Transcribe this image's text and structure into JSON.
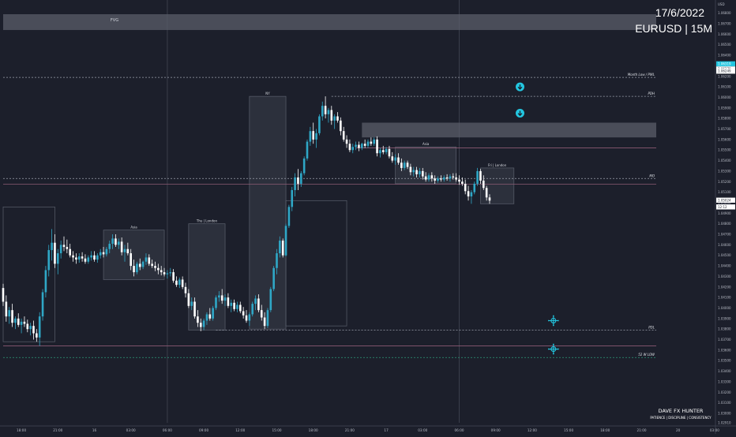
{
  "header": {
    "date": "17/6/2022",
    "symbol": "EURUSD | 15M"
  },
  "branding": {
    "name": "DAVE FX HUNTER",
    "tagline": "PATIENCE | DISCIPLINE | CONSISTENCY"
  },
  "colors": {
    "background": "#1c1f2b",
    "bull": "#2fa7c6",
    "bear": "#ffffff",
    "accent": "#23c6e0",
    "zone": "#5a5e6a",
    "level_grey": "#9aa0ac",
    "level_pink": "#8c5a74",
    "level_green": "#2e9a7a"
  },
  "chart_data": {
    "type": "candlestick",
    "symbol": "EURUSD",
    "timeframe": "15M",
    "currency_label": "USD",
    "ylim": [
      1.0291,
      1.0688
    ],
    "y_ticks": [
      "1.06800",
      "1.06700",
      "1.06600",
      "1.06500",
      "1.06400",
      "1.06300",
      "1.06200",
      "1.06100",
      "1.06000",
      "1.05900",
      "1.05800",
      "1.05700",
      "1.05600",
      "1.05500",
      "1.05400",
      "1.05300",
      "1.05200",
      "1.05100",
      "1.05000",
      "1.04900",
      "1.04800",
      "1.04700",
      "1.04600",
      "1.04500",
      "1.04400",
      "1.04300",
      "1.04200",
      "1.04100",
      "1.04000",
      "1.03900",
      "1.03800",
      "1.03700",
      "1.03600",
      "1.03500",
      "1.03400",
      "1.03300",
      "1.03200",
      "1.03100",
      "1.03000",
      "1.02910"
    ],
    "x_ticks": [
      {
        "i": 6,
        "label": "18:00"
      },
      {
        "i": 18,
        "label": "21:00"
      },
      {
        "i": 30,
        "label": "16"
      },
      {
        "i": 42,
        "label": "03:00"
      },
      {
        "i": 54,
        "label": "06:00"
      },
      {
        "i": 66,
        "label": "09:00"
      },
      {
        "i": 78,
        "label": "12:00"
      },
      {
        "i": 90,
        "label": "15:00"
      },
      {
        "i": 102,
        "label": "18:00"
      },
      {
        "i": 114,
        "label": "21:00"
      },
      {
        "i": 126,
        "label": "17"
      },
      {
        "i": 138,
        "label": "03:00"
      },
      {
        "i": 150,
        "label": "06:00"
      },
      {
        "i": 162,
        "label": "09:00"
      },
      {
        "i": 174,
        "label": "12:00"
      },
      {
        "i": 186,
        "label": "15:00"
      },
      {
        "i": 198,
        "label": "18:00"
      },
      {
        "i": 210,
        "label": "21:00"
      },
      {
        "i": 222,
        "label": "20"
      },
      {
        "i": 234,
        "label": "03:00"
      }
    ],
    "vlines_at": [
      54,
      150
    ],
    "price_labels": [
      {
        "text": "1.06319",
        "y": 1.06319,
        "style": "accent"
      },
      {
        "text": "1.06270",
        "y": 1.0627,
        "style": "light"
      },
      {
        "text": "1.06249",
        "y": 1.06249,
        "style": "light"
      },
      {
        "text": "1.05024",
        "y": 1.05024,
        "style": "light"
      },
      {
        "text": "12:12",
        "y": 1.0496,
        "style": "light"
      }
    ],
    "levels": [
      {
        "label": "Month Low / PWL",
        "y": 1.0619,
        "color": "grey",
        "from": 0
      },
      {
        "label": "PDH",
        "y": 1.0601,
        "color": "grey",
        "from": 108
      },
      {
        "label": "",
        "y": 1.0552,
        "color": "pink",
        "from": 116
      },
      {
        "label": "MO",
        "y": 1.0523,
        "color": "grey",
        "from": 0
      },
      {
        "label": "",
        "y": 1.05175,
        "color": "pink",
        "from": 0
      },
      {
        "label": "PDL",
        "y": 1.0379,
        "color": "grey",
        "from": 70
      },
      {
        "label": "",
        "y": 1.0364,
        "color": "pink",
        "from": 0
      },
      {
        "label": "52 W LOW",
        "y": 1.0353,
        "color": "green",
        "from": 0
      }
    ],
    "zones": [
      {
        "label": "FVG",
        "y1": 1.0664,
        "y2": 1.0679,
        "from": 0,
        "to": 221
      },
      {
        "label": "",
        "y1": 1.0562,
        "y2": 1.0576,
        "from": 118,
        "to": 221
      }
    ],
    "session_boxes": [
      {
        "label": "",
        "from": 0,
        "to": 17,
        "y1": 1.0368,
        "y2": 1.0496,
        "fill": false
      },
      {
        "label": "Asia",
        "from": 33,
        "to": 53,
        "y1": 1.0427,
        "y2": 1.0474,
        "fill": true
      },
      {
        "label": "Thu | London",
        "from": 61,
        "to": 73,
        "y1": 1.0379,
        "y2": 1.048,
        "fill": true
      },
      {
        "label": "NY",
        "from": 81,
        "to": 93,
        "y1": 1.038,
        "y2": 1.0601,
        "fill": true
      },
      {
        "label": "",
        "from": 93,
        "to": 113,
        "y1": 1.0383,
        "y2": 1.0502,
        "fill": false
      },
      {
        "label": "Asia",
        "from": 129,
        "to": 149,
        "y1": 1.0518,
        "y2": 1.0553,
        "fill": true
      },
      {
        "label": "Fri | London",
        "from": 157,
        "to": 168,
        "y1": 1.0499,
        "y2": 1.0533,
        "fill": true
      }
    ],
    "markers": [
      {
        "type": "down-arrow",
        "i": 170,
        "y": 1.061
      },
      {
        "type": "down-arrow",
        "i": 170,
        "y": 1.0585
      },
      {
        "type": "target",
        "i": 181,
        "y": 1.0388
      },
      {
        "type": "target",
        "i": 181,
        "y": 1.0361
      }
    ],
    "ohlc": [
      [
        1.0419,
        1.0423,
        1.0402,
        1.0406
      ],
      [
        1.0406,
        1.0412,
        1.0387,
        1.0392
      ],
      [
        1.0392,
        1.0401,
        1.0385,
        1.0398
      ],
      [
        1.0398,
        1.0404,
        1.0382,
        1.0386
      ],
      [
        1.0386,
        1.0392,
        1.038,
        1.039
      ],
      [
        1.039,
        1.0395,
        1.0382,
        1.0384
      ],
      [
        1.0384,
        1.039,
        1.0376,
        1.0387
      ],
      [
        1.0387,
        1.0392,
        1.0382,
        1.0385
      ],
      [
        1.0385,
        1.0389,
        1.0377,
        1.038
      ],
      [
        1.038,
        1.0386,
        1.0374,
        1.0383
      ],
      [
        1.0383,
        1.0388,
        1.037,
        1.0376
      ],
      [
        1.0376,
        1.038,
        1.0368,
        1.0372
      ],
      [
        1.0372,
        1.0396,
        1.0364,
        1.0392
      ],
      [
        1.0392,
        1.0418,
        1.0388,
        1.0415
      ],
      [
        1.0415,
        1.044,
        1.041,
        1.0436
      ],
      [
        1.0436,
        1.046,
        1.043,
        1.0455
      ],
      [
        1.0455,
        1.0475,
        1.0445,
        1.0462
      ],
      [
        1.0462,
        1.047,
        1.0438,
        1.0442
      ],
      [
        1.0442,
        1.0456,
        1.0432,
        1.0452
      ],
      [
        1.0452,
        1.0464,
        1.0447,
        1.046
      ],
      [
        1.046,
        1.0468,
        1.0454,
        1.0458
      ],
      [
        1.0458,
        1.0465,
        1.0452,
        1.0456
      ],
      [
        1.0456,
        1.0461,
        1.0448,
        1.045
      ],
      [
        1.045,
        1.0454,
        1.0444,
        1.0448
      ],
      [
        1.0448,
        1.0452,
        1.0442,
        1.0446
      ],
      [
        1.0446,
        1.0452,
        1.0443,
        1.0449
      ],
      [
        1.0449,
        1.0453,
        1.0444,
        1.0447
      ],
      [
        1.0447,
        1.0451,
        1.0442,
        1.0444
      ],
      [
        1.0444,
        1.045,
        1.0442,
        1.0448
      ],
      [
        1.0448,
        1.0454,
        1.0445,
        1.045
      ],
      [
        1.045,
        1.0454,
        1.0444,
        1.0446
      ],
      [
        1.0446,
        1.0452,
        1.0443,
        1.045
      ],
      [
        1.045,
        1.0456,
        1.0447,
        1.0453
      ],
      [
        1.0453,
        1.0458,
        1.0448,
        1.0451
      ],
      [
        1.0451,
        1.0458,
        1.0449,
        1.0456
      ],
      [
        1.0456,
        1.0464,
        1.0452,
        1.0461
      ],
      [
        1.0461,
        1.047,
        1.0456,
        1.0466
      ],
      [
        1.0466,
        1.047,
        1.0458,
        1.046
      ],
      [
        1.046,
        1.0466,
        1.0456,
        1.0463
      ],
      [
        1.0463,
        1.0467,
        1.045,
        1.0453
      ],
      [
        1.0453,
        1.046,
        1.0444,
        1.0456
      ],
      [
        1.0456,
        1.0462,
        1.045,
        1.0452
      ],
      [
        1.0452,
        1.0456,
        1.0436,
        1.044
      ],
      [
        1.044,
        1.0446,
        1.043,
        1.0434
      ],
      [
        1.0434,
        1.0444,
        1.0432,
        1.0442
      ],
      [
        1.0442,
        1.0447,
        1.0436,
        1.0439
      ],
      [
        1.0439,
        1.0445,
        1.0437,
        1.0444
      ],
      [
        1.0444,
        1.0452,
        1.0441,
        1.0448
      ],
      [
        1.0448,
        1.0451,
        1.044,
        1.0442
      ],
      [
        1.0442,
        1.0446,
        1.0438,
        1.044
      ],
      [
        1.044,
        1.0444,
        1.0435,
        1.0438
      ],
      [
        1.0438,
        1.0442,
        1.0432,
        1.0436
      ],
      [
        1.0436,
        1.044,
        1.0431,
        1.0434
      ],
      [
        1.0434,
        1.0438,
        1.043,
        1.0432
      ],
      [
        1.0432,
        1.0436,
        1.0428,
        1.0433
      ],
      [
        1.0433,
        1.0438,
        1.043,
        1.0434
      ],
      [
        1.0434,
        1.0437,
        1.0424,
        1.0426
      ],
      [
        1.0426,
        1.043,
        1.042,
        1.0422
      ],
      [
        1.0422,
        1.0429,
        1.0419,
        1.0427
      ],
      [
        1.0427,
        1.043,
        1.0418,
        1.042
      ],
      [
        1.042,
        1.0424,
        1.041,
        1.0414
      ],
      [
        1.0414,
        1.0418,
        1.04,
        1.0402
      ],
      [
        1.0402,
        1.041,
        1.0398,
        1.0406
      ],
      [
        1.0406,
        1.041,
        1.039,
        1.0392
      ],
      [
        1.0392,
        1.0398,
        1.0382,
        1.0386
      ],
      [
        1.0386,
        1.039,
        1.0378,
        1.0382
      ],
      [
        1.0382,
        1.039,
        1.0379,
        1.0388
      ],
      [
        1.0388,
        1.0396,
        1.0384,
        1.0394
      ],
      [
        1.0394,
        1.04,
        1.0388,
        1.039
      ],
      [
        1.039,
        1.0402,
        1.0388,
        1.04
      ],
      [
        1.04,
        1.0412,
        1.0398,
        1.041
      ],
      [
        1.041,
        1.0416,
        1.0406,
        1.0412
      ],
      [
        1.0412,
        1.0418,
        1.0404,
        1.0407
      ],
      [
        1.0407,
        1.0413,
        1.0402,
        1.041
      ],
      [
        1.041,
        1.0414,
        1.04,
        1.0402
      ],
      [
        1.0402,
        1.0408,
        1.0396,
        1.0405
      ],
      [
        1.0405,
        1.0408,
        1.0397,
        1.0399
      ],
      [
        1.0399,
        1.0406,
        1.0396,
        1.0403
      ],
      [
        1.0403,
        1.0406,
        1.0395,
        1.0397
      ],
      [
        1.0397,
        1.0401,
        1.039,
        1.0393
      ],
      [
        1.0393,
        1.0398,
        1.0386,
        1.0388
      ],
      [
        1.0388,
        1.0396,
        1.0383,
        1.0394
      ],
      [
        1.0394,
        1.0406,
        1.0392,
        1.0404
      ],
      [
        1.0404,
        1.0412,
        1.0398,
        1.0409
      ],
      [
        1.0409,
        1.0413,
        1.0396,
        1.0398
      ],
      [
        1.0398,
        1.0403,
        1.0388,
        1.0391
      ],
      [
        1.0391,
        1.0396,
        1.038,
        1.0383
      ],
      [
        1.0383,
        1.04,
        1.0381,
        1.0398
      ],
      [
        1.0398,
        1.042,
        1.0396,
        1.0418
      ],
      [
        1.0418,
        1.044,
        1.0416,
        1.0438
      ],
      [
        1.0438,
        1.0456,
        1.0432,
        1.0452
      ],
      [
        1.0452,
        1.0468,
        1.0448,
        1.0464
      ],
      [
        1.0464,
        1.0466,
        1.0448,
        1.045
      ],
      [
        1.045,
        1.048,
        1.0449,
        1.0478
      ],
      [
        1.0478,
        1.0498,
        1.0476,
        1.0496
      ],
      [
        1.0496,
        1.0515,
        1.0492,
        1.0512
      ],
      [
        1.0512,
        1.0528,
        1.0506,
        1.0524
      ],
      [
        1.0524,
        1.0532,
        1.0512,
        1.0518
      ],
      [
        1.0518,
        1.053,
        1.0515,
        1.0528
      ],
      [
        1.0528,
        1.0544,
        1.0526,
        1.0542
      ],
      [
        1.0542,
        1.056,
        1.054,
        1.0558
      ],
      [
        1.0558,
        1.0572,
        1.0554,
        1.0568
      ],
      [
        1.0568,
        1.0576,
        1.0556,
        1.056
      ],
      [
        1.056,
        1.057,
        1.0552,
        1.0566
      ],
      [
        1.0566,
        1.0584,
        1.0564,
        1.0582
      ],
      [
        1.0582,
        1.0596,
        1.0578,
        1.0592
      ],
      [
        1.0592,
        1.0601,
        1.058,
        1.0584
      ],
      [
        1.0584,
        1.059,
        1.0576,
        1.0588
      ],
      [
        1.0588,
        1.0592,
        1.0574,
        1.0578
      ],
      [
        1.0578,
        1.0584,
        1.057,
        1.0582
      ],
      [
        1.0582,
        1.0586,
        1.0576,
        1.0578
      ],
      [
        1.0578,
        1.0581,
        1.0564,
        1.0568
      ],
      [
        1.0568,
        1.0572,
        1.0558,
        1.056
      ],
      [
        1.056,
        1.0564,
        1.0552,
        1.0556
      ],
      [
        1.0556,
        1.056,
        1.0548,
        1.055
      ],
      [
        1.055,
        1.0556,
        1.0547,
        1.0553
      ],
      [
        1.0553,
        1.0558,
        1.055,
        1.0555
      ],
      [
        1.0555,
        1.0558,
        1.0549,
        1.0552
      ],
      [
        1.0552,
        1.0557,
        1.055,
        1.0556
      ],
      [
        1.0556,
        1.056,
        1.0552,
        1.0554
      ],
      [
        1.0554,
        1.056,
        1.0552,
        1.0558
      ],
      [
        1.0558,
        1.0562,
        1.0554,
        1.0556
      ],
      [
        1.0556,
        1.0562,
        1.0554,
        1.056
      ],
      [
        1.056,
        1.0563,
        1.0544,
        1.0547
      ],
      [
        1.0547,
        1.0552,
        1.0543,
        1.055
      ],
      [
        1.055,
        1.0554,
        1.0546,
        1.0548
      ],
      [
        1.0548,
        1.0553,
        1.0546,
        1.0551
      ],
      [
        1.0551,
        1.0554,
        1.0542,
        1.0544
      ],
      [
        1.0544,
        1.0548,
        1.0538,
        1.054
      ],
      [
        1.054,
        1.0546,
        1.0536,
        1.0543
      ],
      [
        1.0543,
        1.0547,
        1.0536,
        1.0538
      ],
      [
        1.0538,
        1.0542,
        1.053,
        1.0533
      ],
      [
        1.0533,
        1.054,
        1.0531,
        1.0538
      ],
      [
        1.0538,
        1.054,
        1.0532,
        1.0534
      ],
      [
        1.0534,
        1.0537,
        1.0526,
        1.0529
      ],
      [
        1.0529,
        1.0534,
        1.0525,
        1.0531
      ],
      [
        1.0531,
        1.0534,
        1.0524,
        1.0527
      ],
      [
        1.0527,
        1.0533,
        1.0524,
        1.053
      ],
      [
        1.053,
        1.0533,
        1.0522,
        1.0525
      ],
      [
        1.0525,
        1.0529,
        1.052,
        1.0522
      ],
      [
        1.0522,
        1.0528,
        1.052,
        1.0526
      ],
      [
        1.0526,
        1.0529,
        1.052,
        1.0523
      ],
      [
        1.0523,
        1.0526,
        1.0518,
        1.0521
      ],
      [
        1.0521,
        1.0525,
        1.0519,
        1.0523
      ],
      [
        1.0523,
        1.0526,
        1.052,
        1.0522
      ],
      [
        1.0522,
        1.0526,
        1.052,
        1.0524
      ],
      [
        1.0524,
        1.0527,
        1.0521,
        1.0523
      ],
      [
        1.0523,
        1.0527,
        1.052,
        1.0525
      ],
      [
        1.0525,
        1.0528,
        1.0522,
        1.0524
      ],
      [
        1.0524,
        1.0528,
        1.052,
        1.0522
      ],
      [
        1.0522,
        1.0526,
        1.0517,
        1.052
      ],
      [
        1.052,
        1.0524,
        1.0516,
        1.0518
      ],
      [
        1.0518,
        1.0522,
        1.0508,
        1.0511
      ],
      [
        1.0511,
        1.0516,
        1.0502,
        1.0506
      ],
      [
        1.0506,
        1.0512,
        1.0499,
        1.051
      ],
      [
        1.051,
        1.052,
        1.0508,
        1.0518
      ],
      [
        1.0518,
        1.0533,
        1.0516,
        1.053
      ],
      [
        1.053,
        1.0532,
        1.0518,
        1.0521
      ],
      [
        1.0521,
        1.0526,
        1.0512,
        1.0514
      ],
      [
        1.0514,
        1.0516,
        1.0502,
        1.0505
      ],
      [
        1.0505,
        1.0508,
        1.0499,
        1.0502
      ]
    ]
  }
}
